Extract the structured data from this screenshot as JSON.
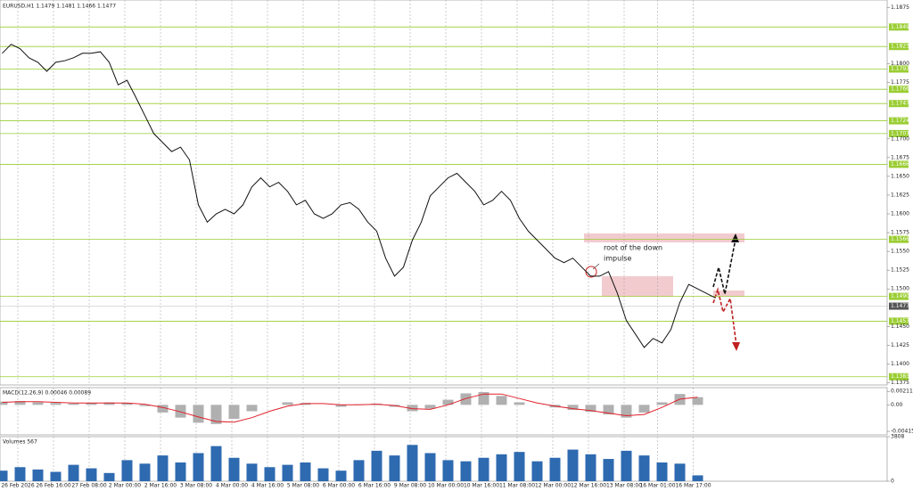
{
  "chart_data": [
    {
      "type": "line",
      "title": "EURUSD,H1  1.1479 1.1481 1.1466 1.1477",
      "color": "#111111",
      "x": [
        0,
        4,
        8,
        12,
        16,
        20,
        24,
        28,
        32,
        36,
        40,
        44,
        48,
        52,
        56,
        60,
        64,
        68,
        72,
        76,
        80,
        84,
        88,
        92,
        96,
        100,
        104,
        108,
        112,
        116,
        120,
        124,
        128,
        132,
        136,
        140,
        144,
        148,
        152,
        156,
        160,
        164,
        168,
        172,
        176,
        180,
        184,
        188,
        192,
        196,
        200,
        204,
        208,
        212,
        216,
        220,
        224,
        228,
        232,
        236,
        240,
        244,
        248,
        252,
        256,
        260,
        264,
        268,
        272,
        276,
        280,
        284,
        288,
        292,
        296,
        300,
        304,
        308,
        312,
        316,
        320
      ],
      "values": [
        1.1814,
        1.1826,
        1.182,
        1.1808,
        1.1802,
        1.179,
        1.1802,
        1.1804,
        1.1808,
        1.1814,
        1.1814,
        1.1816,
        1.1802,
        1.1772,
        1.1778,
        1.1755,
        1.1731,
        1.1707,
        1.1695,
        1.1683,
        1.1689,
        1.1672,
        1.1612,
        1.1589,
        1.16,
        1.1606,
        1.16,
        1.1612,
        1.1636,
        1.1648,
        1.1636,
        1.1642,
        1.163,
        1.1612,
        1.1618,
        1.16,
        1.1594,
        1.16,
        1.1612,
        1.1615,
        1.1606,
        1.1589,
        1.1577,
        1.1541,
        1.1517,
        1.1529,
        1.1565,
        1.1589,
        1.1624,
        1.1636,
        1.1648,
        1.1654,
        1.1642,
        1.163,
        1.1612,
        1.1618,
        1.163,
        1.1618,
        1.1594,
        1.1577,
        1.1565,
        1.1553,
        1.1541,
        1.1535,
        1.1541,
        1.1529,
        1.1517,
        1.1517,
        1.1523,
        1.1494,
        1.1458,
        1.144,
        1.1422,
        1.1434,
        1.1428,
        1.1446,
        1.1482,
        1.1506,
        1.15,
        1.1494,
        1.1488
      ],
      "xlim": [
        -1,
        397
      ],
      "ylim": [
        1.1372,
        1.1885
      ],
      "yticks": [
        {
          "value": 1.1375,
          "label": "1.1375"
        },
        {
          "value": 1.14,
          "label": "1.1400"
        },
        {
          "value": 1.1425,
          "label": "1.1425"
        },
        {
          "value": 1.145,
          "label": "1.1450"
        },
        {
          "value": 1.15,
          "label": "1.1500"
        },
        {
          "value": 1.1525,
          "label": "1.1525"
        },
        {
          "value": 1.155,
          "label": "1.1550"
        },
        {
          "value": 1.1575,
          "label": "1.1575"
        },
        {
          "value": 1.16,
          "label": "1.1600"
        },
        {
          "value": 1.1625,
          "label": "1.1625"
        },
        {
          "value": 1.165,
          "label": "1.1650"
        },
        {
          "value": 1.1675,
          "label": "1.1675"
        },
        {
          "value": 1.17,
          "label": "1.1700"
        },
        {
          "value": 1.1775,
          "label": "1.1775"
        },
        {
          "value": 1.18,
          "label": "1.1800"
        },
        {
          "value": 1.1875,
          "label": "1.1875"
        }
      ],
      "levels": [
        {
          "value": 1.1849,
          "label": "1.1849"
        },
        {
          "value": 1.1823,
          "label": "1.1823"
        },
        {
          "value": 1.1793,
          "label": "1.1793"
        },
        {
          "value": 1.1766,
          "label": "1.1766"
        },
        {
          "value": 1.1747,
          "label": "1.1747"
        },
        {
          "value": 1.1724,
          "label": "1.1724"
        },
        {
          "value": 1.1707,
          "label": "1.1707"
        },
        {
          "value": 1.1666,
          "label": "1.1666"
        },
        {
          "value": 1.1566,
          "label": "1.1566"
        },
        {
          "value": 1.149,
          "label": "1.1490"
        },
        {
          "value": 1.1457,
          "label": "1.1457"
        },
        {
          "value": 1.1383,
          "label": "1.1383"
        }
      ],
      "level_color": "#9acd32",
      "last_price": {
        "value": 1.1477,
        "label": "1.1477"
      },
      "annotation": [
        "root of the down",
        "impulse"
      ]
    },
    {
      "type": "macd",
      "title": "MACD(12,26,9) 0.00046 0.00089",
      "x": [
        0,
        8,
        16,
        24,
        32,
        40,
        48,
        56,
        64,
        72,
        80,
        88,
        96,
        104,
        112,
        120,
        128,
        136,
        144,
        152,
        160,
        168,
        176,
        184,
        192,
        200,
        208,
        216,
        224,
        232,
        240,
        248,
        256,
        264,
        272,
        280,
        288,
        296,
        304,
        312
      ],
      "histogram": {
        "color": "#b0b0b0",
        "values": [
          0.0005,
          0.0006,
          0.0004,
          0.0003,
          0.0002,
          0.0003,
          0.0004,
          0.0003,
          -0.0002,
          -0.0012,
          -0.002,
          -0.0028,
          -0.003,
          -0.0022,
          -0.001,
          0.0,
          0.0004,
          0.0003,
          0.0,
          -0.0003,
          0.0001,
          0.0002,
          -0.0003,
          -0.001,
          -0.0006,
          0.0008,
          0.0018,
          0.002,
          0.0014,
          0.0004,
          0.0,
          -0.0004,
          -0.0008,
          -0.0011,
          -0.0015,
          -0.002,
          -0.0012,
          0.0004,
          0.0017,
          0.0012
        ]
      },
      "signal": {
        "color": "#e0202a",
        "values": [
          0.0004,
          0.0005,
          0.0005,
          0.0004,
          0.0003,
          0.0003,
          0.0003,
          0.0003,
          0.0001,
          -0.0004,
          -0.0011,
          -0.0019,
          -0.0026,
          -0.0027,
          -0.002,
          -0.001,
          -0.0002,
          0.0002,
          0.0002,
          0.0,
          0.0,
          0.0001,
          -0.0001,
          -0.0006,
          -0.0007,
          0.0,
          0.001,
          0.0017,
          0.0017,
          0.001,
          0.0003,
          -0.0002,
          -0.0006,
          -0.0009,
          -0.0013,
          -0.0017,
          -0.0015,
          -0.0004,
          0.0009,
          0.0012
        ]
      },
      "xlim": [
        -1,
        397
      ],
      "ylim": [
        -0.0047,
        0.0027
      ],
      "yticks": [
        0.00211,
        {
          "value": 0,
          "label": "0.00"
        },
        -0.00415
      ]
    },
    {
      "type": "bar",
      "title": "Volumes 567",
      "color": "#2e6ab0",
      "x": [
        0,
        8,
        16,
        24,
        32,
        40,
        48,
        56,
        64,
        72,
        80,
        88,
        96,
        104,
        112,
        120,
        128,
        136,
        144,
        152,
        160,
        168,
        176,
        184,
        192,
        200,
        208,
        216,
        224,
        232,
        240,
        248,
        256,
        264,
        272,
        280,
        288,
        296,
        304,
        312
      ],
      "values": [
        900,
        1200,
        1000,
        800,
        1400,
        1100,
        700,
        1800,
        1500,
        2200,
        1600,
        2400,
        3000,
        2000,
        1500,
        1200,
        1400,
        1600,
        1100,
        900,
        1800,
        2600,
        2200,
        3100,
        2400,
        1800,
        1700,
        2000,
        2300,
        2500,
        1700,
        2000,
        2700,
        2300,
        1900,
        2600,
        2200,
        1600,
        1500,
        500
      ],
      "xlim": [
        -1,
        397
      ],
      "ylim": [
        0,
        3808
      ],
      "yticks": [
        3808,
        0
      ],
      "xticks": [
        {
          "value": 7,
          "label": "26 Feb 2026"
        },
        {
          "value": 23,
          "label": "26 Feb 16:00"
        },
        {
          "value": 39,
          "label": "27 Feb 08:00"
        },
        {
          "value": 55,
          "label": "2 Mar 00:00"
        },
        {
          "value": 71,
          "label": "2 Mar 16:00"
        },
        {
          "value": 87,
          "label": "3 Mar 08:00"
        },
        {
          "value": 103,
          "label": "4 Mar 00:00"
        },
        {
          "value": 119,
          "label": "4 Mar 16:00"
        },
        {
          "value": 135,
          "label": "5 Mar 08:00"
        },
        {
          "value": 151,
          "label": "6 Mar 00:00"
        },
        {
          "value": 167,
          "label": "6 Mar 16:00"
        },
        {
          "value": 183,
          "label": "9 Mar 08:00"
        },
        {
          "value": 199,
          "label": "10 Mar 00:00"
        },
        {
          "value": 215,
          "label": "10 Mar 16:00"
        },
        {
          "value": 231,
          "label": "11 Mar 08:00"
        },
        {
          "value": 247,
          "label": "12 Mar 00:00"
        },
        {
          "value": 263,
          "label": "12 Mar 16:00"
        },
        {
          "value": 279,
          "label": "13 Mar 08:00"
        },
        {
          "value": 294,
          "label": "16 Mar 01:00"
        },
        {
          "value": 310,
          "label": "16 Mar 17:00"
        }
      ]
    }
  ]
}
